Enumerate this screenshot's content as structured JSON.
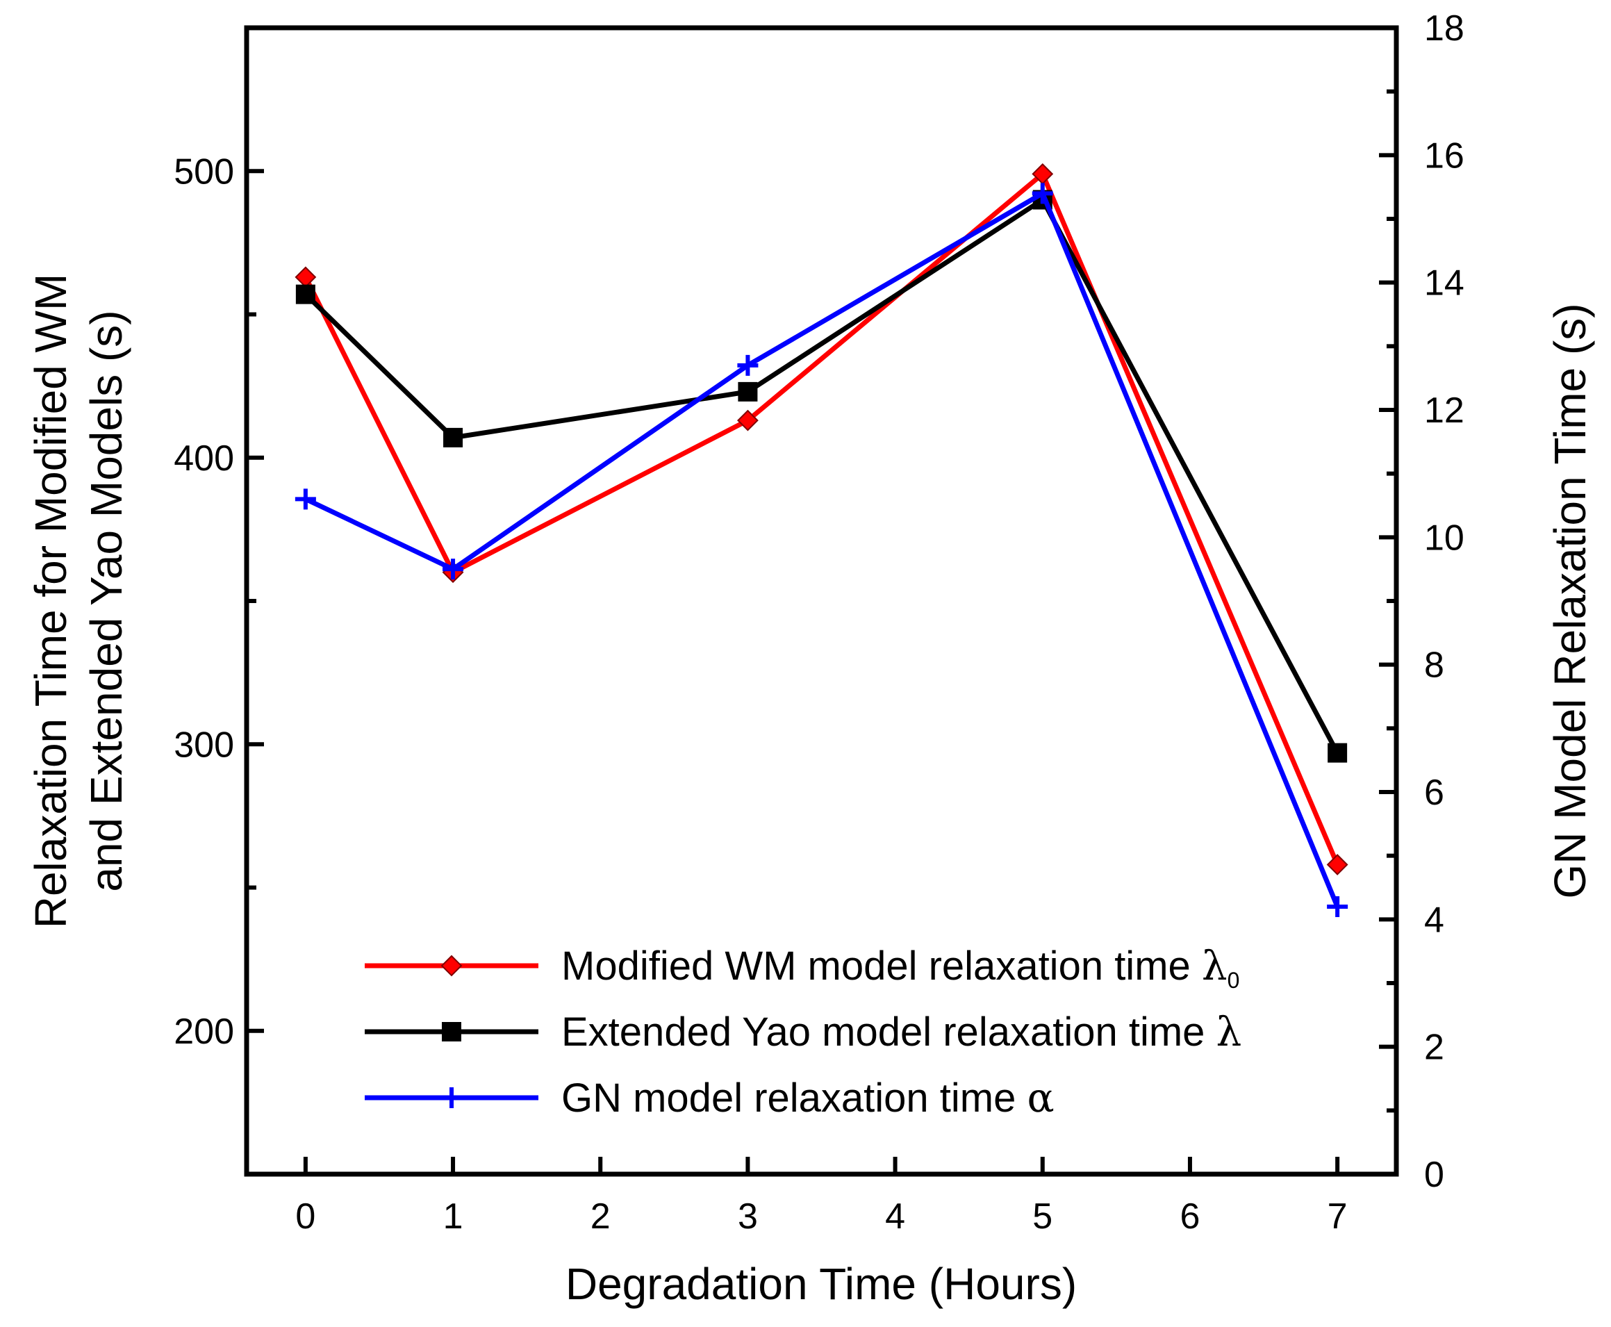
{
  "chart_data": {
    "type": "line",
    "xlabel": "Degradation Time (Hours)",
    "ylabel_left_line1": "Relaxation Time for Modified WM",
    "ylabel_left_line2": "and Extended Yao Models (s)",
    "ylabel_right": "GN Model Relaxation Time (s)",
    "xlim": [
      -0.4,
      7.4
    ],
    "ylim_left": [
      150,
      550
    ],
    "ylim_right": [
      0,
      18
    ],
    "x_ticks": [
      0,
      1,
      2,
      3,
      4,
      5,
      6,
      7
    ],
    "x_tick_labels": [
      "0",
      "1",
      "2",
      "3",
      "4",
      "5",
      "6",
      "7"
    ],
    "y_left_ticks": [
      200,
      300,
      400,
      500
    ],
    "y_left_tick_labels": [
      "200",
      "300",
      "400",
      "500"
    ],
    "y_left_minor_ticks": [
      250,
      350,
      450
    ],
    "y_right_ticks": [
      0,
      2,
      4,
      6,
      8,
      10,
      12,
      14,
      16,
      18
    ],
    "y_right_tick_labels": [
      "0",
      "2",
      "4",
      "6",
      "8",
      "10",
      "12",
      "14",
      "16",
      "18"
    ],
    "y_right_minor_ticks": [
      1,
      3,
      5,
      7,
      9,
      11,
      13,
      15,
      17
    ],
    "legend_position": "lower-center",
    "series": [
      {
        "name": "Modified WM model relaxation time λ",
        "legend_base": "Modified WM model relaxation time ",
        "legend_symbol": "λ",
        "legend_sub": "0",
        "color": "#ff0000",
        "marker": "diamond",
        "axis": "left",
        "x": [
          0,
          1,
          3,
          5,
          7
        ],
        "y": [
          463,
          360,
          413,
          499,
          258
        ]
      },
      {
        "name": "Extended Yao model relaxation time λ",
        "legend_base": "Extended Yao model relaxation time ",
        "legend_symbol": "λ",
        "legend_sub": "",
        "color": "#000000",
        "marker": "square",
        "axis": "left",
        "x": [
          0,
          1,
          3,
          5,
          7
        ],
        "y": [
          457,
          407,
          423,
          490,
          297
        ]
      },
      {
        "name": "GN model relaxation time α",
        "legend_base": "GN model relaxation time ",
        "legend_symbol": "α",
        "legend_sub": "",
        "color": "#0000ff",
        "marker": "plus",
        "axis": "right",
        "x": [
          0,
          1,
          3,
          5,
          7
        ],
        "y": [
          10.6,
          9.5,
          12.7,
          15.4,
          4.2
        ]
      }
    ]
  }
}
